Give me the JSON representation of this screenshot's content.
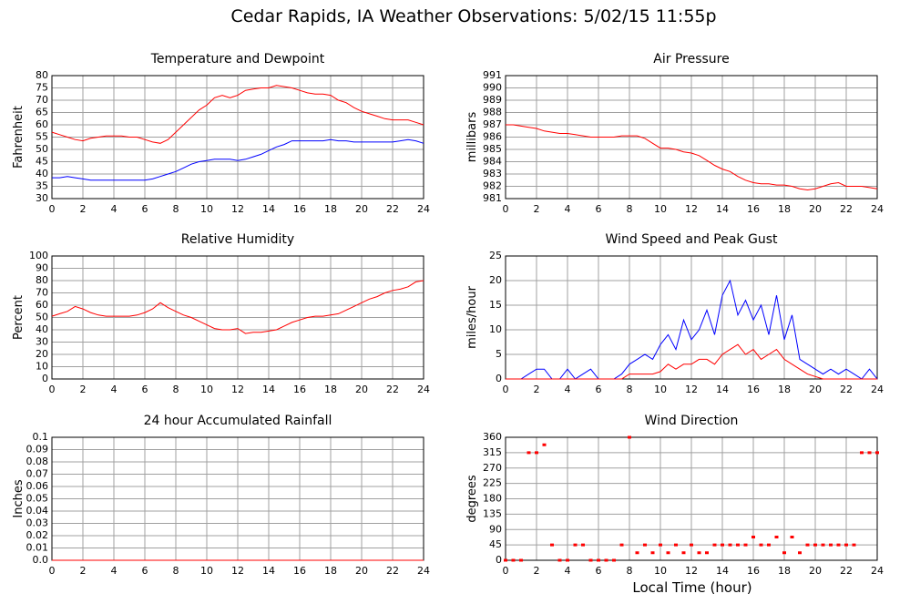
{
  "title": "Cedar Rapids, IA Weather Observations: 5/02/15 11:55p",
  "xlabel": "Local Time (hour)",
  "chart_data": [
    {
      "type": "line",
      "title": "Temperature and Dewpoint",
      "ylabel": "Fahrenheit",
      "grid": true,
      "x": [
        0,
        0.5,
        1,
        1.5,
        2,
        2.5,
        3,
        3.5,
        4,
        4.5,
        5,
        5.5,
        6,
        6.5,
        7,
        7.5,
        8,
        8.5,
        9,
        9.5,
        10,
        10.5,
        11,
        11.5,
        12,
        12.5,
        13,
        13.5,
        14,
        14.5,
        15,
        15.5,
        16,
        16.5,
        17,
        17.5,
        18,
        18.5,
        19,
        19.5,
        20,
        20.5,
        21,
        21.5,
        22,
        22.5,
        23,
        23.5,
        24
      ],
      "series": [
        {
          "color": "#ff0000",
          "values": [
            57,
            56,
            55,
            54,
            53.5,
            54.5,
            55,
            55.5,
            55.5,
            55.5,
            55,
            55,
            54,
            53,
            52.5,
            54,
            57,
            60,
            63,
            66,
            68,
            71,
            72,
            71,
            72,
            74,
            74.5,
            75,
            75,
            76,
            75.5,
            75,
            74,
            73,
            72.5,
            72.5,
            72,
            70,
            69,
            67,
            65.5,
            64.5,
            63.5,
            62.5,
            62,
            62,
            62,
            61,
            60
          ]
        },
        {
          "color": "#0000ff",
          "values": [
            38.5,
            38.5,
            39,
            38.5,
            38,
            37.5,
            37.5,
            37.5,
            37.5,
            37.5,
            37.5,
            37.5,
            37.5,
            38,
            39,
            40,
            41,
            42.5,
            44,
            45,
            45.5,
            46,
            46,
            46,
            45.5,
            46,
            47,
            48,
            49.5,
            51,
            52,
            53.5,
            53.5,
            53.5,
            53.5,
            53.5,
            54,
            53.5,
            53.5,
            53,
            53,
            53,
            53,
            53,
            53,
            53.5,
            54,
            53.5,
            52.5
          ]
        }
      ],
      "xlim": [
        0,
        24
      ],
      "xticks": [
        0,
        2,
        4,
        6,
        8,
        10,
        12,
        14,
        16,
        18,
        20,
        22,
        24
      ],
      "ylim": [
        30,
        80
      ],
      "yticks": [
        30,
        35,
        40,
        45,
        50,
        55,
        60,
        65,
        70,
        75,
        80
      ]
    },
    {
      "type": "line",
      "title": "Air Pressure",
      "ylabel": "millibars",
      "grid": true,
      "x": [
        0,
        0.5,
        1,
        1.5,
        2,
        2.5,
        3,
        3.5,
        4,
        4.5,
        5,
        5.5,
        6,
        6.5,
        7,
        7.5,
        8,
        8.5,
        9,
        9.5,
        10,
        10.5,
        11,
        11.5,
        12,
        12.5,
        13,
        13.5,
        14,
        14.5,
        15,
        15.5,
        16,
        16.5,
        17,
        17.5,
        18,
        18.5,
        19,
        19.5,
        20,
        20.5,
        21,
        21.5,
        22,
        22.5,
        23,
        23.5,
        24
      ],
      "series": [
        {
          "color": "#ff0000",
          "values": [
            987,
            987,
            986.9,
            986.8,
            986.7,
            986.5,
            986.4,
            986.3,
            986.3,
            986.2,
            986.1,
            986,
            986,
            986,
            986,
            986.1,
            986.1,
            986.1,
            985.9,
            985.5,
            985.1,
            985.1,
            985,
            984.8,
            984.7,
            984.5,
            984.1,
            983.7,
            983.4,
            983.2,
            982.8,
            982.5,
            982.3,
            982.2,
            982.2,
            982.1,
            982.1,
            982,
            981.8,
            981.7,
            981.8,
            982,
            982.2,
            982.3,
            982,
            982,
            982,
            981.9,
            981.8
          ]
        }
      ],
      "xlim": [
        0,
        24
      ],
      "xticks": [
        0,
        2,
        4,
        6,
        8,
        10,
        12,
        14,
        16,
        18,
        20,
        22,
        24
      ],
      "ylim": [
        981,
        991
      ],
      "yticks": [
        981,
        982,
        983,
        984,
        985,
        986,
        987,
        988,
        989,
        990,
        991
      ]
    },
    {
      "type": "line",
      "title": "Relative Humidity",
      "ylabel": "Percent",
      "grid": true,
      "x": [
        0,
        0.5,
        1,
        1.5,
        2,
        2.5,
        3,
        3.5,
        4,
        4.5,
        5,
        5.5,
        6,
        6.5,
        7,
        7.5,
        8,
        8.5,
        9,
        9.5,
        10,
        10.5,
        11,
        11.5,
        12,
        12.5,
        13,
        13.5,
        14,
        14.5,
        15,
        15.5,
        16,
        16.5,
        17,
        17.5,
        18,
        18.5,
        19,
        19.5,
        20,
        20.5,
        21,
        21.5,
        22,
        22.5,
        23,
        23.5,
        24
      ],
      "series": [
        {
          "color": "#ff0000",
          "values": [
            51,
            53,
            55,
            59,
            57,
            54,
            52,
            51,
            51,
            51,
            51,
            52,
            54,
            57,
            62,
            58,
            55,
            52,
            50,
            47,
            44,
            41,
            40,
            40,
            41,
            37,
            38,
            38,
            39,
            40,
            43,
            46,
            48,
            50,
            51,
            51,
            52,
            53,
            56,
            59,
            62,
            65,
            67,
            70,
            72,
            73,
            75,
            79,
            80
          ]
        }
      ],
      "xlim": [
        0,
        24
      ],
      "xticks": [
        0,
        2,
        4,
        6,
        8,
        10,
        12,
        14,
        16,
        18,
        20,
        22,
        24
      ],
      "ylim": [
        0,
        100
      ],
      "yticks": [
        0,
        10,
        20,
        30,
        40,
        50,
        60,
        70,
        80,
        90,
        100
      ]
    },
    {
      "type": "line",
      "title": "Wind Speed and Peak Gust",
      "ylabel": "miles/hour",
      "grid": true,
      "x": [
        0,
        0.5,
        1,
        1.5,
        2,
        2.5,
        3,
        3.5,
        4,
        4.5,
        5,
        5.5,
        6,
        6.5,
        7,
        7.5,
        8,
        8.5,
        9,
        9.5,
        10,
        10.5,
        11,
        11.5,
        12,
        12.5,
        13,
        13.5,
        14,
        14.5,
        15,
        15.5,
        16,
        16.5,
        17,
        17.5,
        18,
        18.5,
        19,
        19.5,
        20,
        20.5,
        21,
        21.5,
        22,
        22.5,
        23,
        23.5,
        24
      ],
      "series": [
        {
          "color": "#0000ff",
          "values": [
            0,
            0,
            0,
            1,
            2,
            2,
            0,
            0,
            2,
            0,
            1,
            2,
            0,
            0,
            0,
            1,
            3,
            4,
            5,
            4,
            7,
            9,
            6,
            12,
            8,
            10,
            14,
            9,
            17,
            20,
            13,
            16,
            12,
            15,
            9,
            17,
            8,
            13,
            4,
            3,
            2,
            1,
            2,
            1,
            2,
            1,
            0,
            2,
            0
          ]
        },
        {
          "color": "#ff0000",
          "values": [
            0,
            0,
            0,
            0,
            0,
            0,
            0,
            0,
            0,
            0,
            0,
            0,
            0,
            0,
            0,
            0,
            1,
            1,
            1,
            1,
            1.5,
            3,
            2,
            3,
            3,
            4,
            4,
            3,
            5,
            6,
            7,
            5,
            6,
            4,
            5,
            6,
            4,
            3,
            2,
            1,
            0.5,
            0,
            0,
            0,
            0,
            0,
            0,
            0,
            0
          ]
        }
      ],
      "xlim": [
        0,
        24
      ],
      "xticks": [
        0,
        2,
        4,
        6,
        8,
        10,
        12,
        14,
        16,
        18,
        20,
        22,
        24
      ],
      "ylim": [
        0,
        25
      ],
      "yticks": [
        0,
        5,
        10,
        15,
        20,
        25
      ]
    },
    {
      "type": "line",
      "title": "24 hour Accumulated Rainfall",
      "ylabel": "Inches",
      "grid": true,
      "x": [
        0,
        24
      ],
      "series": [
        {
          "color": "#ff0000",
          "values": [
            0,
            0
          ]
        }
      ],
      "xlim": [
        0,
        24
      ],
      "xticks": [
        0,
        2,
        4,
        6,
        8,
        10,
        12,
        14,
        16,
        18,
        20,
        22,
        24
      ],
      "ylim": [
        0,
        0.1
      ],
      "yticks": [
        {
          "value": 0,
          "label": "0.0"
        },
        0.01,
        0.02,
        0.03,
        0.04,
        0.05,
        0.06,
        0.07,
        0.08,
        0.09,
        0.1
      ]
    },
    {
      "type": "scatter",
      "title": "Wind Direction",
      "ylabel": "degrees",
      "grid": true,
      "x": [
        0,
        0.5,
        1,
        1.5,
        2,
        2.5,
        3,
        3.5,
        4,
        4.5,
        5,
        5.5,
        6,
        6.5,
        7,
        7.5,
        8,
        8.5,
        9,
        9.5,
        10,
        10.5,
        11,
        11.5,
        12,
        12.5,
        13,
        13.5,
        14,
        14.5,
        15,
        15.5,
        16,
        16.5,
        17,
        17.5,
        18,
        18.5,
        19,
        19.5,
        20,
        20.5,
        21,
        21.5,
        22,
        22.5,
        23,
        23.5,
        24
      ],
      "series": [
        {
          "color": "#ff0000",
          "values": [
            0,
            0,
            0,
            315,
            315,
            338,
            45,
            0,
            0,
            45,
            45,
            0,
            0,
            0,
            0,
            45,
            360,
            22,
            45,
            22,
            45,
            22,
            45,
            22,
            45,
            22,
            22,
            45,
            45,
            45,
            45,
            45,
            68,
            45,
            45,
            68,
            22,
            68,
            22,
            45,
            45,
            45,
            45,
            45,
            45,
            45,
            315,
            315,
            315
          ]
        }
      ],
      "xlim": [
        0,
        24
      ],
      "xticks": [
        0,
        2,
        4,
        6,
        8,
        10,
        12,
        14,
        16,
        18,
        20,
        22,
        24
      ],
      "ylim": [
        0,
        360
      ],
      "yticks": [
        0,
        45,
        90,
        135,
        180,
        225,
        270,
        315,
        360
      ]
    }
  ]
}
